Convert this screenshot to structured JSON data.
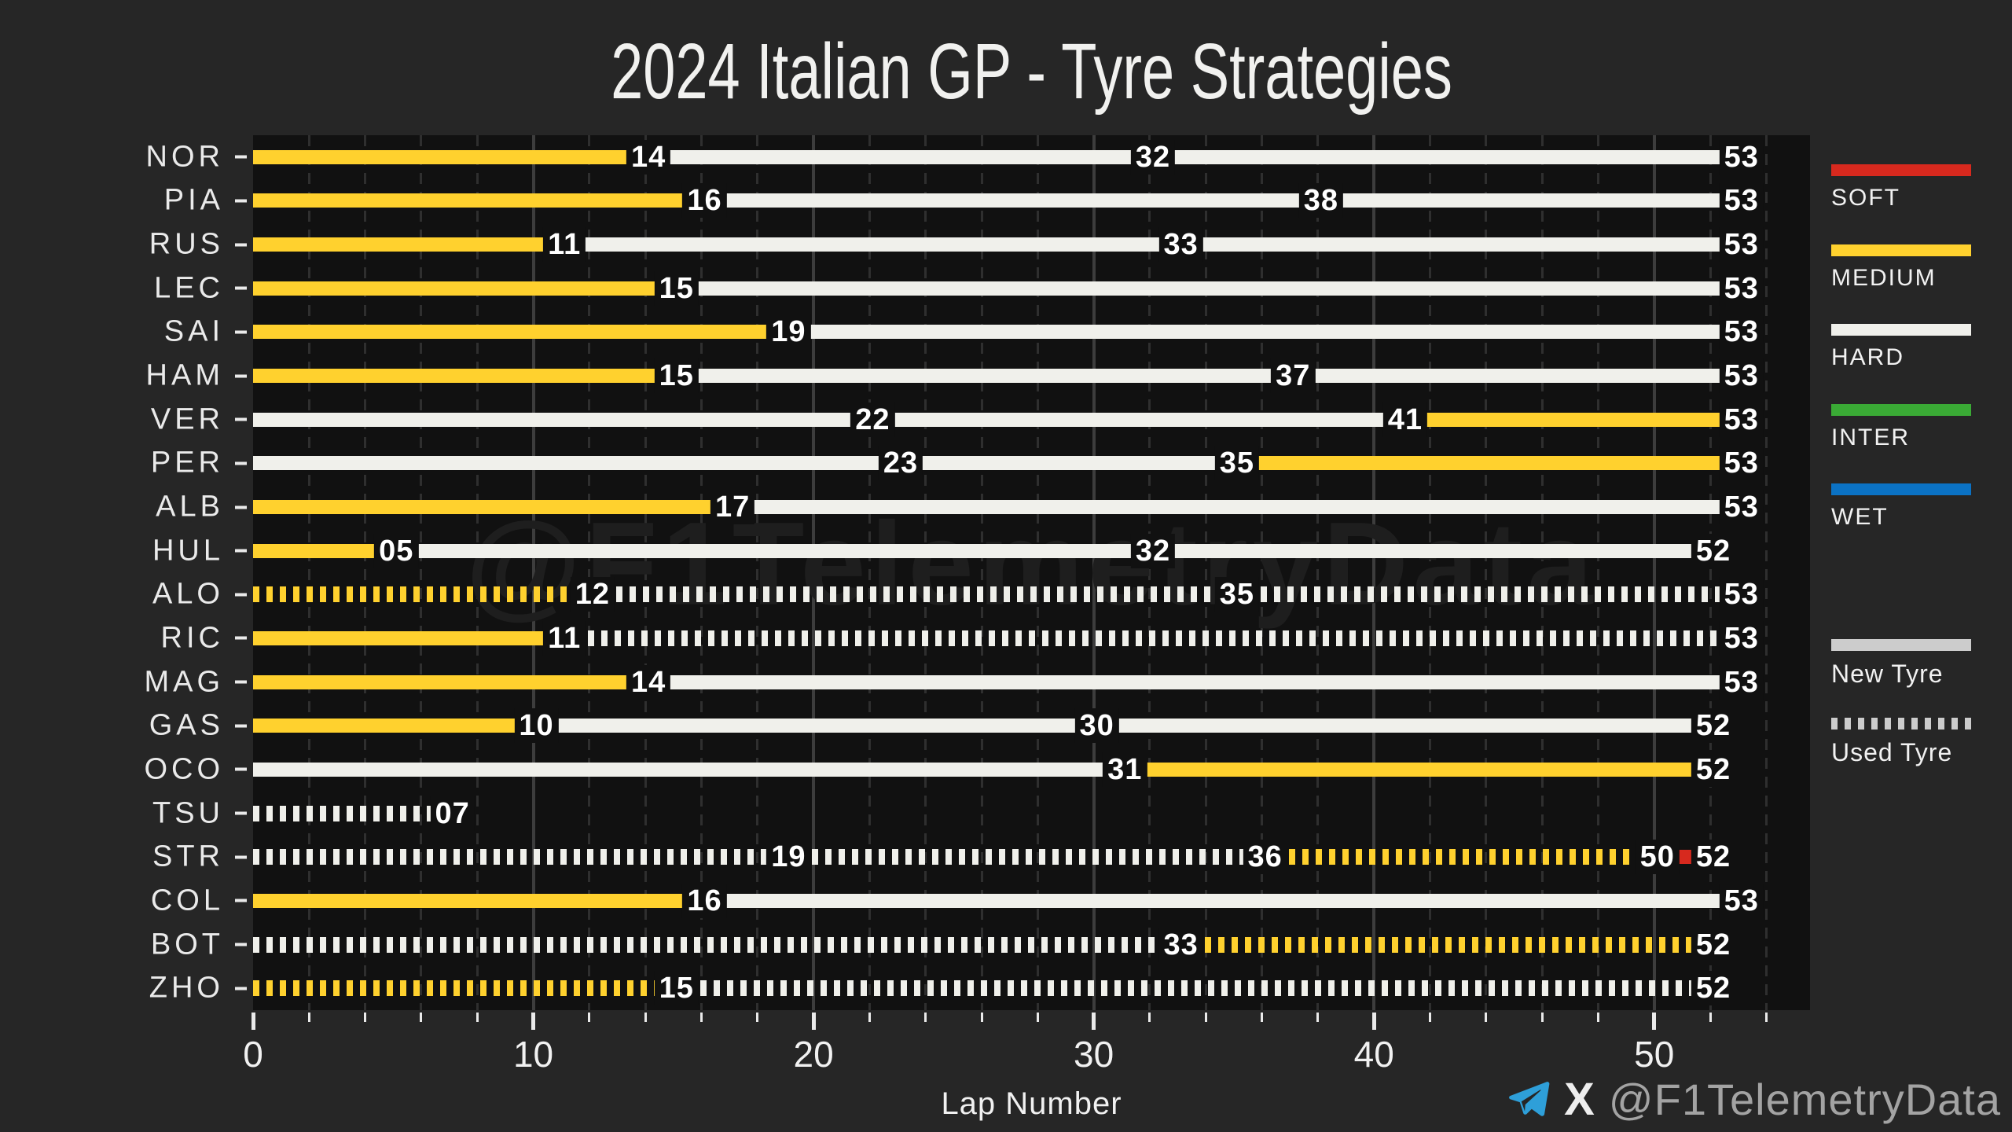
{
  "title": "2024 Italian GP - Tyre Strategies",
  "watermark": "@F1TelemetryData",
  "footer": {
    "handle": "@F1TelemetryData",
    "x_glyph": "X"
  },
  "legend": {
    "compounds": [
      {
        "name": "SOFT",
        "color": "#D7291E"
      },
      {
        "name": "MEDIUM",
        "color": "#FFD12E"
      },
      {
        "name": "HARD",
        "color": "#F0F0EB"
      },
      {
        "name": "INTER",
        "color": "#3AAA35"
      },
      {
        "name": "WET",
        "color": "#0B72C4"
      }
    ],
    "usage": [
      {
        "name": "New Tyre",
        "style": "solid"
      },
      {
        "name": "Used Tyre",
        "style": "dashed"
      }
    ],
    "usage_color": "#CCCCCC"
  },
  "chart_data": {
    "type": "bar",
    "subtype": "horizontal-stacked-timeline",
    "title": "2024 Italian GP - Tyre Strategies",
    "xlabel": "Lap Number",
    "xlim": [
      0,
      55.56
    ],
    "xticks": [
      0,
      10,
      20,
      30,
      40,
      50
    ],
    "minor_tick_step": 2,
    "grid": "vertical, minor dashed every 2 laps, major solid every 10 laps",
    "legend_position": "right",
    "compound_colors": {
      "S": "#D7291E",
      "M": "#FFD12E",
      "H": "#F0F0EB",
      "I": "#3AAA35",
      "W": "#0B72C4"
    },
    "drivers": [
      {
        "code": "NOR",
        "stints": [
          {
            "compound": "M",
            "used": false,
            "start": 0,
            "end": 14,
            "label": "14"
          },
          {
            "compound": "H",
            "used": false,
            "start": 14,
            "end": 32,
            "label": "32"
          },
          {
            "compound": "H",
            "used": false,
            "start": 32,
            "end": 53,
            "label": "53"
          }
        ]
      },
      {
        "code": "PIA",
        "stints": [
          {
            "compound": "M",
            "used": false,
            "start": 0,
            "end": 16,
            "label": "16"
          },
          {
            "compound": "H",
            "used": false,
            "start": 16,
            "end": 38,
            "label": "38"
          },
          {
            "compound": "H",
            "used": false,
            "start": 38,
            "end": 53,
            "label": "53"
          }
        ]
      },
      {
        "code": "RUS",
        "stints": [
          {
            "compound": "M",
            "used": false,
            "start": 0,
            "end": 11,
            "label": "11"
          },
          {
            "compound": "H",
            "used": false,
            "start": 11,
            "end": 33,
            "label": "33"
          },
          {
            "compound": "H",
            "used": false,
            "start": 33,
            "end": 53,
            "label": "53"
          }
        ]
      },
      {
        "code": "LEC",
        "stints": [
          {
            "compound": "M",
            "used": false,
            "start": 0,
            "end": 15,
            "label": "15"
          },
          {
            "compound": "H",
            "used": false,
            "start": 15,
            "end": 53,
            "label": "53"
          }
        ]
      },
      {
        "code": "SAI",
        "stints": [
          {
            "compound": "M",
            "used": false,
            "start": 0,
            "end": 19,
            "label": "19"
          },
          {
            "compound": "H",
            "used": false,
            "start": 19,
            "end": 53,
            "label": "53"
          }
        ]
      },
      {
        "code": "HAM",
        "stints": [
          {
            "compound": "M",
            "used": false,
            "start": 0,
            "end": 15,
            "label": "15"
          },
          {
            "compound": "H",
            "used": false,
            "start": 15,
            "end": 37,
            "label": "37"
          },
          {
            "compound": "H",
            "used": false,
            "start": 37,
            "end": 53,
            "label": "53"
          }
        ]
      },
      {
        "code": "VER",
        "stints": [
          {
            "compound": "H",
            "used": false,
            "start": 0,
            "end": 22,
            "label": "22"
          },
          {
            "compound": "H",
            "used": false,
            "start": 22,
            "end": 41,
            "label": "41"
          },
          {
            "compound": "M",
            "used": false,
            "start": 41,
            "end": 53,
            "label": "53"
          }
        ]
      },
      {
        "code": "PER",
        "stints": [
          {
            "compound": "H",
            "used": false,
            "start": 0,
            "end": 23,
            "label": "23"
          },
          {
            "compound": "H",
            "used": false,
            "start": 23,
            "end": 35,
            "label": "35"
          },
          {
            "compound": "M",
            "used": false,
            "start": 35,
            "end": 53,
            "label": "53"
          }
        ]
      },
      {
        "code": "ALB",
        "stints": [
          {
            "compound": "M",
            "used": false,
            "start": 0,
            "end": 17,
            "label": "17"
          },
          {
            "compound": "H",
            "used": false,
            "start": 17,
            "end": 53,
            "label": "53"
          }
        ]
      },
      {
        "code": "HUL",
        "stints": [
          {
            "compound": "M",
            "used": false,
            "start": 0,
            "end": 5,
            "label": "05"
          },
          {
            "compound": "H",
            "used": false,
            "start": 5,
            "end": 32,
            "label": "32"
          },
          {
            "compound": "H",
            "used": false,
            "start": 32,
            "end": 52,
            "label": "52"
          }
        ]
      },
      {
        "code": "ALO",
        "stints": [
          {
            "compound": "M",
            "used": true,
            "start": 0,
            "end": 12,
            "label": "12"
          },
          {
            "compound": "H",
            "used": true,
            "start": 12,
            "end": 35,
            "label": "35"
          },
          {
            "compound": "H",
            "used": true,
            "start": 35,
            "end": 53,
            "label": "53"
          }
        ]
      },
      {
        "code": "RIC",
        "stints": [
          {
            "compound": "M",
            "used": false,
            "start": 0,
            "end": 11,
            "label": "11"
          },
          {
            "compound": "H",
            "used": true,
            "start": 11,
            "end": 53,
            "label": "53"
          }
        ]
      },
      {
        "code": "MAG",
        "stints": [
          {
            "compound": "M",
            "used": false,
            "start": 0,
            "end": 14,
            "label": "14"
          },
          {
            "compound": "H",
            "used": false,
            "start": 14,
            "end": 53,
            "label": "53"
          }
        ]
      },
      {
        "code": "GAS",
        "stints": [
          {
            "compound": "M",
            "used": false,
            "start": 0,
            "end": 10,
            "label": "10"
          },
          {
            "compound": "H",
            "used": false,
            "start": 10,
            "end": 30,
            "label": "30"
          },
          {
            "compound": "H",
            "used": false,
            "start": 30,
            "end": 52,
            "label": "52"
          }
        ]
      },
      {
        "code": "OCO",
        "stints": [
          {
            "compound": "H",
            "used": false,
            "start": 0,
            "end": 31,
            "label": "31"
          },
          {
            "compound": "M",
            "used": false,
            "start": 31,
            "end": 52,
            "label": "52"
          }
        ]
      },
      {
        "code": "TSU",
        "stints": [
          {
            "compound": "H",
            "used": true,
            "start": 0,
            "end": 7,
            "label": "07"
          }
        ]
      },
      {
        "code": "STR",
        "stints": [
          {
            "compound": "H",
            "used": true,
            "start": 0,
            "end": 19,
            "label": "19"
          },
          {
            "compound": "H",
            "used": true,
            "start": 19,
            "end": 36,
            "label": "36"
          },
          {
            "compound": "M",
            "used": true,
            "start": 36,
            "end": 50,
            "label": "50"
          },
          {
            "compound": "S",
            "used": false,
            "start": 50,
            "end": 52,
            "label": "52"
          }
        ]
      },
      {
        "code": "COL",
        "stints": [
          {
            "compound": "M",
            "used": false,
            "start": 0,
            "end": 16,
            "label": "16"
          },
          {
            "compound": "H",
            "used": false,
            "start": 16,
            "end": 53,
            "label": "53"
          }
        ]
      },
      {
        "code": "BOT",
        "stints": [
          {
            "compound": "H",
            "used": true,
            "start": 0,
            "end": 33,
            "label": "33"
          },
          {
            "compound": "M",
            "used": true,
            "start": 33,
            "end": 52,
            "label": "52"
          }
        ]
      },
      {
        "code": "ZHO",
        "stints": [
          {
            "compound": "M",
            "used": true,
            "start": 0,
            "end": 15,
            "label": "15"
          },
          {
            "compound": "H",
            "used": true,
            "start": 15,
            "end": 52,
            "label": "52"
          }
        ]
      }
    ]
  }
}
